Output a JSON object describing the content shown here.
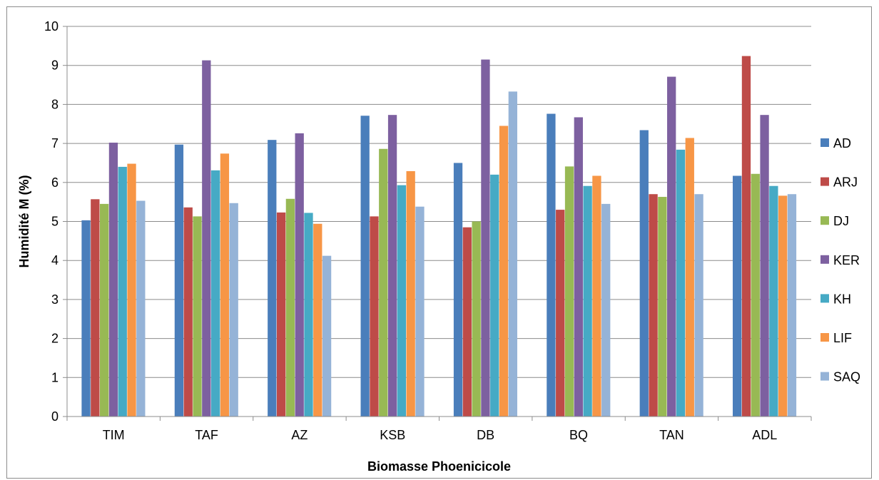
{
  "chart_data": {
    "type": "bar",
    "title": "",
    "xlabel": "Biomasse Phoenicicole",
    "ylabel": "Humidité  M (%)",
    "ylim": [
      0,
      10
    ],
    "yticks": [
      0,
      1,
      2,
      3,
      4,
      5,
      6,
      7,
      8,
      9,
      10
    ],
    "grid": true,
    "legend_position": "right",
    "categories": [
      "TIM",
      "TAF",
      "AZ",
      "KSB",
      "DB",
      "BQ",
      "TAN",
      "ADL"
    ],
    "series": [
      {
        "name": "AD",
        "color": "#4a7ebb",
        "values": [
          5.03,
          6.97,
          7.09,
          7.71,
          6.5,
          7.76,
          7.34,
          6.17
        ]
      },
      {
        "name": "ARJ",
        "color": "#be4b48",
        "values": [
          5.57,
          5.36,
          5.23,
          5.13,
          4.85,
          5.3,
          5.7,
          9.24
        ]
      },
      {
        "name": "DJ",
        "color": "#98b954",
        "values": [
          5.45,
          5.13,
          5.58,
          6.86,
          5.0,
          6.41,
          5.63,
          6.22
        ]
      },
      {
        "name": "KER",
        "color": "#7d60a0",
        "values": [
          7.02,
          9.13,
          7.26,
          7.73,
          9.15,
          7.67,
          8.71,
          7.73
        ]
      },
      {
        "name": "KH",
        "color": "#46aac5",
        "values": [
          6.4,
          6.31,
          5.22,
          5.93,
          6.2,
          5.91,
          6.84,
          5.91
        ]
      },
      {
        "name": "LIF",
        "color": "#f79646",
        "values": [
          6.48,
          6.74,
          4.94,
          6.29,
          7.45,
          6.17,
          7.14,
          5.66
        ]
      },
      {
        "name": "SAQ",
        "color": "#95b3d7",
        "values": [
          5.53,
          5.47,
          4.12,
          5.38,
          8.33,
          5.45,
          5.7,
          5.7
        ]
      }
    ]
  }
}
